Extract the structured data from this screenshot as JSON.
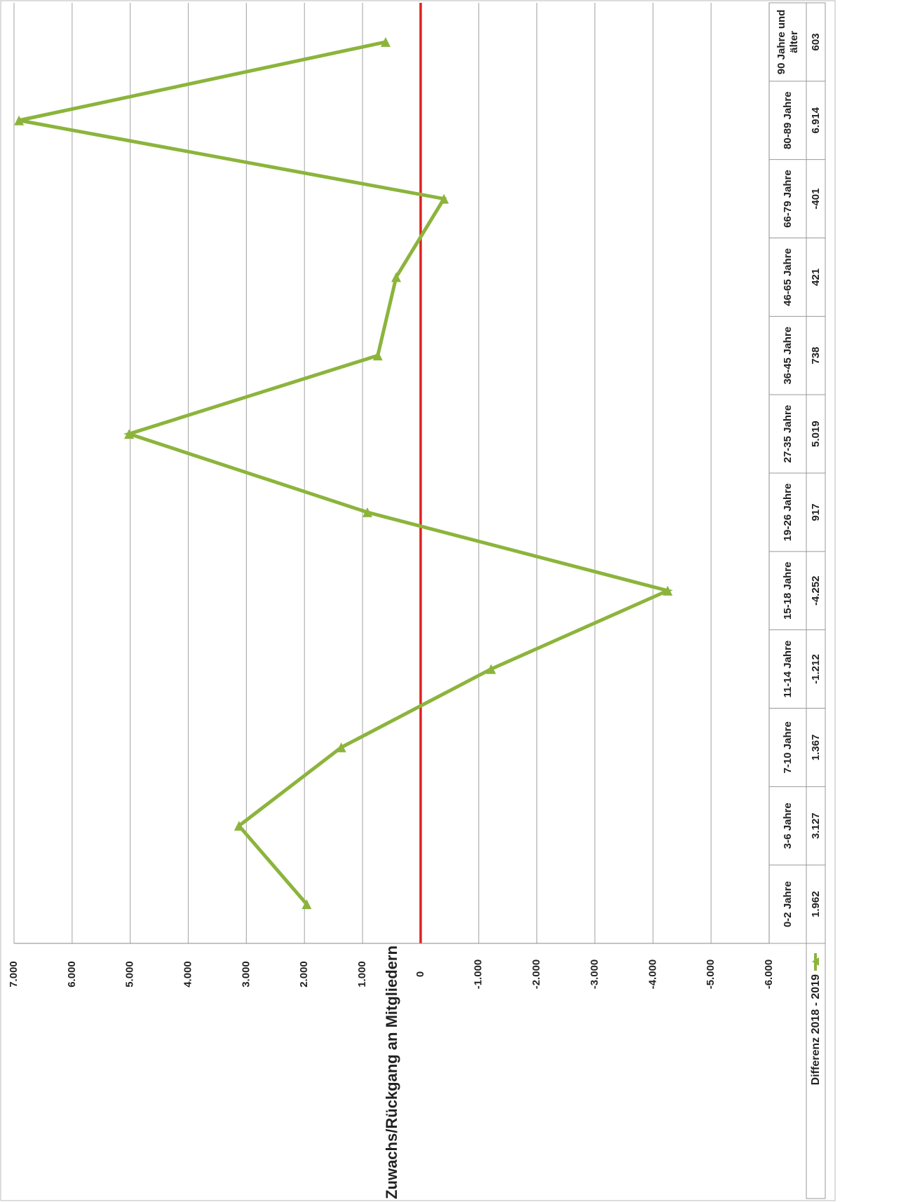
{
  "chart_data": {
    "type": "line",
    "y_label": "Zuwachs/Rückgang an Mitgliedern",
    "categories": [
      "0-2 Jahre",
      "3-6 Jahre",
      "7-10 Jahre",
      "11-14 Jahre",
      "15-18 Jahre",
      "19-26 Jahre",
      "27-35 Jahre",
      "36-45 Jahre",
      "46-65 Jahre",
      "66-79 Jahre",
      "80-89 Jahre",
      "90 Jahre und älter"
    ],
    "series": [
      {
        "name": "Differenz 2018 - 2019",
        "color": "#8cb43c",
        "values": [
          1962,
          3127,
          1367,
          -1212,
          -4252,
          917,
          5019,
          738,
          421,
          -401,
          6914,
          603
        ],
        "value_labels": [
          "1.962",
          "3.127",
          "1.367",
          "-1.212",
          "-4.252",
          "917",
          "5.019",
          "738",
          "421",
          "-401",
          "6.914",
          "603"
        ]
      }
    ],
    "ylim": [
      -6000,
      7000
    ],
    "yticks": [
      {
        "value": -6000,
        "label": "-6.000"
      },
      {
        "value": -5000,
        "label": "-5.000"
      },
      {
        "value": -4000,
        "label": "-4.000"
      },
      {
        "value": -3000,
        "label": "-3.000"
      },
      {
        "value": -2000,
        "label": "-2.000"
      },
      {
        "value": -1000,
        "label": "-1.000"
      },
      0,
      {
        "value": 1000,
        "label": "1.000"
      },
      {
        "value": 2000,
        "label": "2.000"
      },
      {
        "value": 3000,
        "label": "3.000"
      },
      {
        "value": 4000,
        "label": "4.000"
      },
      {
        "value": 5000,
        "label": "5.000"
      },
      {
        "value": 6000,
        "label": "6.000"
      },
      {
        "value": 7000,
        "label": "7.000"
      }
    ],
    "grid": true,
    "zero_line_color": "#e02020",
    "legend": "bottom-right"
  }
}
